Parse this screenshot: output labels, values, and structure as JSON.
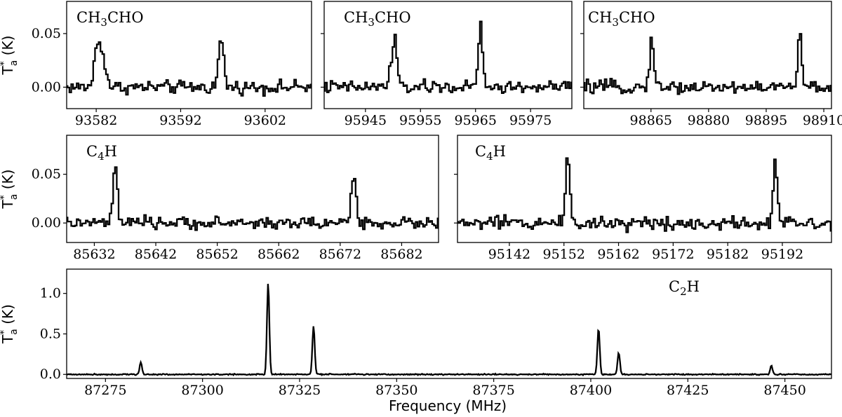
{
  "figure": {
    "xlabel": "Frequency (MHz)"
  },
  "chart_data": [
    {
      "type": "line",
      "step": true,
      "label": "CH3CHO",
      "label_parts": [
        "CH",
        "3",
        "CHO"
      ],
      "ylabel": "T*a (K)",
      "xlim": [
        93578.5,
        93607.5
      ],
      "ylim": [
        -0.02,
        0.08
      ],
      "xticks": [
        93582,
        93592,
        93602
      ],
      "yticks": [
        0.0,
        0.05
      ],
      "ytick_labels": [
        "0.00",
        "0.05"
      ],
      "noise": 0.005,
      "lines": [
        {
          "x": 93582.6,
          "peak": 0.035,
          "width": 0.45
        },
        {
          "x": 93582.0,
          "peak": 0.022,
          "width": 0.3
        },
        {
          "x": 93596.8,
          "peak": 0.045,
          "width": 0.3
        }
      ]
    },
    {
      "type": "line",
      "step": true,
      "label": "CH3CHO",
      "label_parts": [
        "CH",
        "3",
        "CHO"
      ],
      "ylabel": "",
      "xlim": [
        95937.5,
        95982.5
      ],
      "ylim": [
        -0.02,
        0.08
      ],
      "xticks": [
        95945,
        95955,
        95965,
        95975
      ],
      "yticks": [
        0.0,
        0.05
      ],
      "ytick_labels": [
        "",
        ""
      ],
      "noise": 0.005,
      "lines": [
        {
          "x": 95950.4,
          "peak": 0.045,
          "width": 0.35
        },
        {
          "x": 95949.6,
          "peak": 0.022,
          "width": 0.3
        },
        {
          "x": 95965.9,
          "peak": 0.06,
          "width": 0.35
        }
      ]
    },
    {
      "type": "line",
      "step": true,
      "label": "CH3CHO",
      "label_parts": [
        "CH",
        "3",
        "CHO"
      ],
      "ylabel": "",
      "xlim": [
        98847.5,
        98912.0
      ],
      "ylim": [
        -0.02,
        0.08
      ],
      "xticks": [
        98865,
        98880,
        98895,
        98910
      ],
      "yticks": [
        0.0,
        0.05
      ],
      "ytick_labels": [
        "",
        ""
      ],
      "noise": 0.005,
      "lines": [
        {
          "x": 98865.2,
          "peak": 0.05,
          "width": 0.5
        },
        {
          "x": 98903.7,
          "peak": 0.05,
          "width": 0.5
        }
      ]
    },
    {
      "type": "line",
      "step": true,
      "label": "C4H",
      "label_parts": [
        "C",
        "4",
        "H"
      ],
      "ylabel": "T*a (K)",
      "xlim": [
        85627.5,
        85688.0
      ],
      "ylim": [
        -0.02,
        0.09
      ],
      "xticks": [
        85632,
        85642,
        85652,
        85662,
        85672,
        85682
      ],
      "yticks": [
        0.0,
        0.05
      ],
      "ytick_labels": [
        "0.00",
        "0.05"
      ],
      "noise": 0.005,
      "lines": [
        {
          "x": 85635.4,
          "peak": 0.058,
          "width": 0.35
        },
        {
          "x": 85674.2,
          "peak": 0.049,
          "width": 0.4
        }
      ]
    },
    {
      "type": "line",
      "step": true,
      "label": "C4H",
      "label_parts": [
        "C",
        "4",
        "H"
      ],
      "ylabel": "",
      "xlim": [
        95132.5,
        95201.0
      ],
      "ylim": [
        -0.02,
        0.09
      ],
      "xticks": [
        95142,
        95152,
        95162,
        95172,
        95182,
        95192
      ],
      "yticks": [
        0.0,
        0.05
      ],
      "ytick_labels": [
        "",
        ""
      ],
      "noise": 0.006,
      "lines": [
        {
          "x": 95152.7,
          "peak": 0.069,
          "width": 0.4
        },
        {
          "x": 95190.7,
          "peak": 0.064,
          "width": 0.4
        }
      ]
    },
    {
      "type": "line",
      "step": false,
      "label": "C2H",
      "label_parts": [
        "C",
        "2",
        "H"
      ],
      "ylabel": "T*a (K)",
      "xlim": [
        87265.0,
        87462.0
      ],
      "ylim": [
        -0.05,
        1.3
      ],
      "xticks": [
        87275,
        87300,
        87325,
        87350,
        87375,
        87400,
        87425,
        87450
      ],
      "yticks": [
        0.0,
        0.5,
        1.0
      ],
      "ytick_labels": [
        "0.0",
        "0.5",
        "1.0"
      ],
      "noise": 0.006,
      "lines": [
        {
          "x": 87284.1,
          "peak": 0.15,
          "width": 0.3
        },
        {
          "x": 87316.9,
          "peak": 1.13,
          "width": 0.3
        },
        {
          "x": 87328.6,
          "peak": 0.6,
          "width": 0.3
        },
        {
          "x": 87402.0,
          "peak": 0.57,
          "width": 0.3
        },
        {
          "x": 87407.2,
          "peak": 0.27,
          "width": 0.3
        },
        {
          "x": 87446.5,
          "peak": 0.11,
          "width": 0.3
        }
      ]
    }
  ]
}
